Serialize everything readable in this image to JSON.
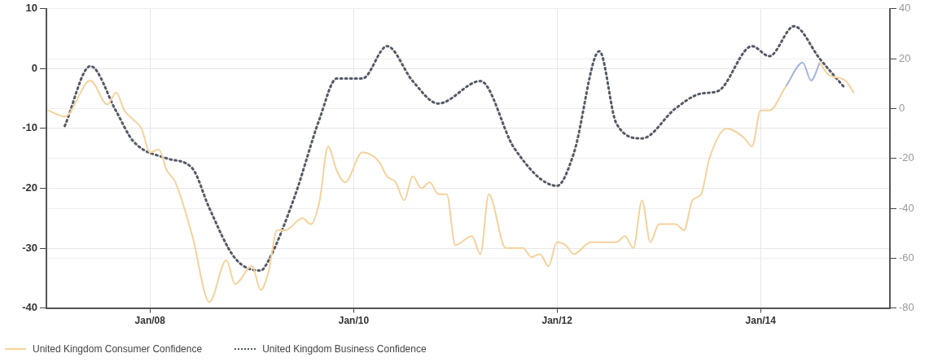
{
  "chart_data": {
    "type": "line",
    "legend": "bottom left",
    "grid": true,
    "marker": "none",
    "xlim": [
      "2006-12-25",
      "2015-04-10"
    ],
    "xticks": [
      {
        "value": "2008-01",
        "label": "Jan/08"
      },
      {
        "value": "2010-01",
        "label": "Jan/10"
      },
      {
        "value": "2012-01",
        "label": "Jan/12"
      },
      {
        "value": "2014-01",
        "label": "Jan/14"
      }
    ],
    "ylim": [
      -40,
      10
    ],
    "yticks": [
      -40,
      -30,
      -20,
      -10,
      0,
      10
    ],
    "y2lim": [
      -80,
      40
    ],
    "y2ticks": [
      -80,
      -60,
      -40,
      -20,
      0,
      20,
      40
    ],
    "series": [
      {
        "name": "United Kingdom Consumer Confidence",
        "color": "#f5d29c",
        "line_style": "solid",
        "x": [
          "2007-01",
          "2007-03",
          "2007-06",
          "2007-08",
          "2007-09",
          "2007-10",
          "2007-11",
          "2007-12",
          "2008-01",
          "2008-02",
          "2008-03",
          "2008-04",
          "2008-06",
          "2008-08",
          "2008-10",
          "2008-11",
          "2009-01",
          "2009-02",
          "2009-03",
          "2009-04",
          "2009-05",
          "2009-07",
          "2009-08",
          "2009-09",
          "2009-10",
          "2009-11",
          "2009-12",
          "2010-02",
          "2010-04",
          "2010-05",
          "2010-06",
          "2010-07",
          "2010-08",
          "2010-09",
          "2010-10",
          "2010-11",
          "2010-12",
          "2011-01",
          "2011-03",
          "2011-04",
          "2011-05",
          "2011-07",
          "2011-09",
          "2011-10",
          "2011-11",
          "2011-12",
          "2012-01",
          "2012-02",
          "2012-03",
          "2012-05",
          "2012-08",
          "2012-09",
          "2012-10",
          "2012-11",
          "2012-12",
          "2013-01",
          "2013-03",
          "2013-04",
          "2013-05",
          "2013-06",
          "2013-07",
          "2013-09",
          "2013-11",
          "2013-12",
          "2014-01",
          "2014-02",
          "2014-04",
          "2014-06",
          "2014-08",
          "2014-09",
          "2014-11",
          "2014-12"
        ],
        "values": [
          -7,
          -8,
          -2,
          -6,
          -4,
          -7,
          -8.5,
          -10,
          -14,
          -13.5,
          -17,
          -19,
          -28,
          -39,
          -32,
          -36,
          -33,
          -37,
          -34,
          -27,
          -27,
          -25,
          -26,
          -22,
          -13,
          -17,
          -19,
          -14,
          -15.5,
          -18,
          -19,
          -22,
          -18,
          -20,
          -19,
          -21,
          -21,
          -29.5,
          -28,
          -31,
          -21,
          -30,
          -30,
          -31.5,
          -31,
          -33,
          -29,
          -29.5,
          -31,
          -29,
          -29,
          -28,
          -30,
          -22,
          -29,
          -26,
          -26,
          -27,
          -22,
          -21,
          -15,
          -10,
          -11.5,
          -13,
          -7,
          -7,
          -3,
          null,
          1,
          -1,
          -2,
          -4
        ]
      },
      {
        "color": "#a3b5dc",
        "line_style": "solid",
        "x": [
          "2014-04",
          "2014-06",
          "2014-07",
          "2014-08"
        ],
        "values": [
          -3,
          1,
          -2,
          1
        ]
      },
      {
        "name": "United Kingdom Business Confidence",
        "color": "#555a66",
        "line_style": "dotted",
        "axis": "y2",
        "x": [
          "2007-03",
          "2007-06",
          "2007-09",
          "2007-11",
          "2008-03",
          "2008-06",
          "2008-08",
          "2008-11",
          "2009-02",
          "2009-03",
          "2009-06",
          "2009-09",
          "2009-11",
          "2010-02",
          "2010-05",
          "2010-08",
          "2010-11",
          "2011-04",
          "2011-08",
          "2012-01",
          "2012-03",
          "2012-06",
          "2012-08",
          "2012-11",
          "2013-03",
          "2013-06",
          "2013-08",
          "2013-12",
          "2014-02",
          "2014-05",
          "2014-08",
          "2014-11"
        ],
        "values": [
          -7,
          17,
          -1,
          -13,
          -20,
          -24,
          -40,
          -60,
          -65,
          -61,
          -36,
          -4,
          12,
          12,
          25,
          11,
          2,
          11,
          -16,
          -31,
          -18,
          23,
          -6,
          -12,
          0,
          6,
          7,
          25,
          21,
          33,
          20,
          8
        ]
      }
    ]
  }
}
